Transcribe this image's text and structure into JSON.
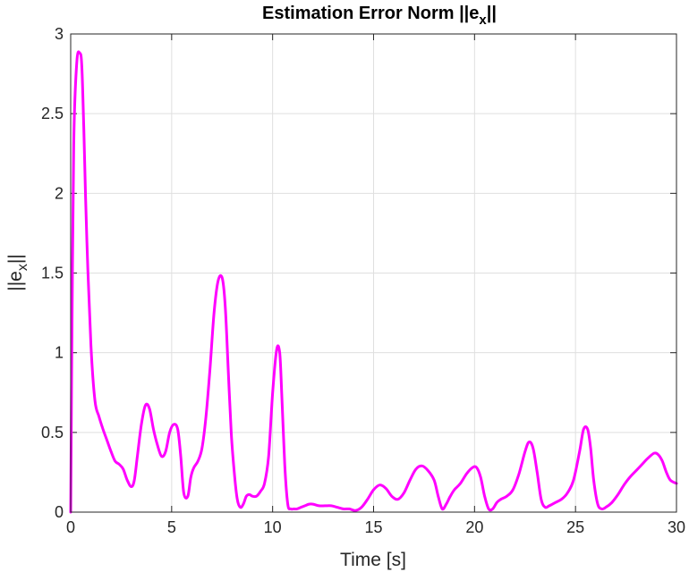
{
  "chart_data": {
    "type": "line",
    "title": "Estimation Error Norm ||e",
    "title_subscript": "x",
    "title_suffix": "||",
    "xlabel": "Time [s]",
    "ylabel": "||e",
    "ylabel_subscript": "x",
    "ylabel_suffix": "||",
    "xlim": [
      0,
      30
    ],
    "ylim": [
      0,
      3
    ],
    "xticks": [
      0,
      5,
      10,
      15,
      20,
      25,
      30
    ],
    "yticks": [
      0,
      0.5,
      1,
      1.5,
      2,
      2.5,
      3
    ],
    "xtick_labels": [
      "0",
      "5",
      "10",
      "15",
      "20",
      "25",
      "30"
    ],
    "ytick_labels": [
      "0",
      "0.5",
      "1",
      "1.5",
      "2",
      "2.5",
      "3"
    ],
    "grid": true,
    "series": [
      {
        "color": "#ff00ff",
        "x": [
          0,
          0.05,
          0.15,
          0.3,
          0.45,
          0.55,
          0.65,
          0.8,
          1.0,
          1.2,
          1.4,
          1.6,
          1.8,
          2.0,
          2.2,
          2.4,
          2.6,
          2.8,
          3.0,
          3.15,
          3.3,
          3.5,
          3.7,
          3.9,
          4.1,
          4.3,
          4.5,
          4.7,
          4.9,
          5.1,
          5.3,
          5.45,
          5.6,
          5.8,
          5.95,
          6.1,
          6.3,
          6.5,
          6.7,
          6.9,
          7.1,
          7.3,
          7.5,
          7.65,
          7.8,
          7.95,
          8.1,
          8.25,
          8.4,
          8.55,
          8.7,
          8.85,
          9.0,
          9.2,
          9.4,
          9.6,
          9.8,
          10.0,
          10.2,
          10.35,
          10.45,
          10.6,
          10.75,
          10.9,
          11.05,
          11.2,
          11.4,
          11.6,
          11.8,
          12.0,
          12.3,
          12.6,
          12.9,
          13.2,
          13.5,
          13.8,
          14.1,
          14.4,
          14.7,
          15.0,
          15.3,
          15.6,
          15.9,
          16.2,
          16.5,
          16.8,
          17.1,
          17.4,
          17.7,
          18.0,
          18.2,
          18.4,
          18.6,
          18.8,
          19.0,
          19.3,
          19.6,
          19.9,
          20.1,
          20.3,
          20.5,
          20.7,
          20.9,
          21.1,
          21.3,
          21.6,
          21.9,
          22.2,
          22.5,
          22.7,
          22.9,
          23.1,
          23.3,
          23.5,
          23.7,
          24.0,
          24.3,
          24.6,
          24.9,
          25.2,
          25.4,
          25.6,
          25.75,
          25.9,
          26.1,
          26.3,
          26.5,
          26.8,
          27.1,
          27.4,
          27.7,
          28.0,
          28.3,
          28.6,
          28.9,
          29.1,
          29.3,
          29.5,
          29.7,
          30.0
        ],
        "y": [
          0.0,
          0.9,
          2.3,
          2.82,
          2.88,
          2.8,
          2.4,
          1.7,
          1.05,
          0.7,
          0.6,
          0.52,
          0.45,
          0.38,
          0.32,
          0.3,
          0.27,
          0.2,
          0.16,
          0.2,
          0.35,
          0.55,
          0.67,
          0.65,
          0.52,
          0.42,
          0.35,
          0.38,
          0.5,
          0.55,
          0.52,
          0.35,
          0.12,
          0.1,
          0.22,
          0.28,
          0.32,
          0.4,
          0.6,
          0.9,
          1.25,
          1.45,
          1.47,
          1.3,
          0.9,
          0.5,
          0.25,
          0.08,
          0.03,
          0.05,
          0.1,
          0.11,
          0.1,
          0.1,
          0.13,
          0.18,
          0.35,
          0.75,
          1.02,
          1.0,
          0.75,
          0.3,
          0.05,
          0.02,
          0.02,
          0.02,
          0.03,
          0.04,
          0.05,
          0.05,
          0.04,
          0.04,
          0.04,
          0.03,
          0.02,
          0.02,
          0.01,
          0.03,
          0.08,
          0.14,
          0.17,
          0.15,
          0.1,
          0.08,
          0.12,
          0.2,
          0.27,
          0.29,
          0.26,
          0.2,
          0.1,
          0.02,
          0.05,
          0.1,
          0.14,
          0.18,
          0.24,
          0.28,
          0.28,
          0.22,
          0.1,
          0.02,
          0.02,
          0.06,
          0.08,
          0.1,
          0.14,
          0.24,
          0.38,
          0.44,
          0.4,
          0.25,
          0.08,
          0.03,
          0.04,
          0.06,
          0.08,
          0.12,
          0.2,
          0.38,
          0.52,
          0.52,
          0.4,
          0.2,
          0.05,
          0.02,
          0.03,
          0.06,
          0.11,
          0.17,
          0.22,
          0.26,
          0.3,
          0.34,
          0.37,
          0.36,
          0.32,
          0.25,
          0.2,
          0.18
        ]
      }
    ]
  }
}
